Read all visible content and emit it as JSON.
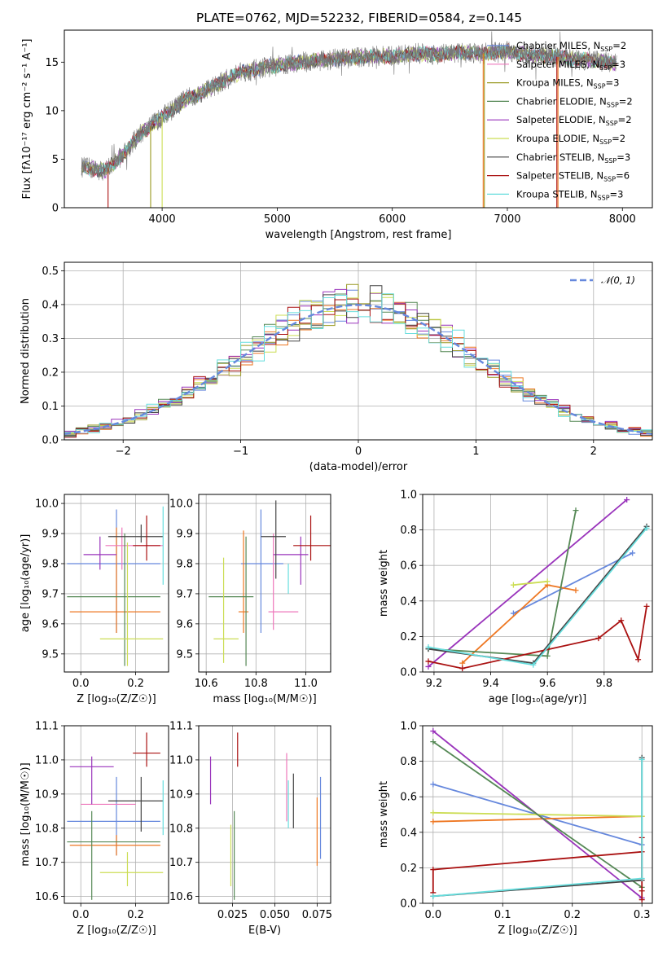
{
  "figure": {
    "title": "PLATE=0762, MJD=52232, FIBERID=0584, z=0.145"
  },
  "colors": {
    "blue": "#6688dd",
    "orange": "#ee7722",
    "olive": "#999922",
    "green": "#558855",
    "purple": "#9933bb",
    "lime": "#ccdd55",
    "dark": "#444444",
    "red": "#aa1111",
    "cyan": "#66dddd",
    "pink": "#ee77bb",
    "gray": "#777777",
    "spectrum": "#777777"
  },
  "chart_data": [
    {
      "id": "spectrum",
      "type": "line",
      "xlabel": "wavelength [Angstrom, rest frame]",
      "ylabel": "Flux [fλ10⁻¹⁷ erg cm⁻² s⁻¹ A⁻¹]",
      "xlim": [
        3150,
        8260
      ],
      "ylim": [
        0,
        18.3
      ],
      "xticks": [
        4000,
        5000,
        6000,
        7000,
        8000
      ],
      "yticks": [
        0,
        5,
        10,
        15
      ],
      "legend_position": "top-right",
      "observed_spectrum": {
        "x": [
          3300,
          3400,
          3500,
          3600,
          3700,
          3800,
          3900,
          4000,
          4100,
          4200,
          4300,
          4400,
          4500,
          4600,
          4700,
          4800,
          4900,
          5000,
          5200,
          5400,
          5600,
          5800,
          6000,
          6200,
          6400,
          6600,
          6800,
          7000,
          7200,
          7400,
          7600,
          7800,
          7950
        ],
        "y": [
          4.2,
          4.0,
          3.8,
          4.8,
          6.0,
          7.5,
          8.4,
          9.4,
          10.2,
          11.2,
          11.6,
          12.3,
          12.8,
          13.5,
          14.0,
          14.2,
          14.5,
          14.6,
          15.0,
          15.2,
          15.4,
          15.6,
          15.6,
          15.9,
          15.8,
          16.0,
          15.9,
          16.1,
          15.7,
          15.6,
          15.3,
          15.1,
          14.8
        ]
      },
      "series": [
        {
          "name": "Chabrier MILES, N$_{SSP}$=2",
          "label_main": "Chabrier MILES, N",
          "label_sub": "SSP",
          "label_tail": "=2",
          "color_key": "blue"
        },
        {
          "name": "Salpeter MILES, N$_{SSP}$=3",
          "label_main": "Salpeter MILES, N",
          "label_sub": "SSP",
          "label_tail": "=3",
          "color_key": "pink"
        },
        {
          "name": "Kroupa MILES, N$_{SSP}$=3",
          "label_main": "Kroupa MILES, N",
          "label_sub": "SSP",
          "label_tail": "=3",
          "color_key": "olive"
        },
        {
          "name": "Chabrier ELODIE, N$_{SSP}$=2",
          "label_main": "Chabrier ELODIE, N",
          "label_sub": "SSP",
          "label_tail": "=2",
          "color_key": "green"
        },
        {
          "name": "Salpeter ELODIE, N$_{SSP}$=2",
          "label_main": "Salpeter ELODIE, N",
          "label_sub": "SSP",
          "label_tail": "=2",
          "color_key": "purple"
        },
        {
          "name": "Kroupa ELODIE, N$_{SSP}$=2",
          "label_main": "Kroupa ELODIE, N",
          "label_sub": "SSP",
          "label_tail": "=2",
          "color_key": "lime"
        },
        {
          "name": "Chabrier STELIB, N$_{SSP}$=3",
          "label_main": "Chabrier STELIB, N",
          "label_sub": "SSP",
          "label_tail": "=3",
          "color_key": "dark"
        },
        {
          "name": "Salpeter STELIB, N$_{SSP}$=6",
          "label_main": "Salpeter STELIB, N",
          "label_sub": "SSP",
          "label_tail": "=6",
          "color_key": "red"
        },
        {
          "name": "Kroupa STELIB, N$_{SSP}$=3",
          "label_main": "Kroupa STELIB, N",
          "label_sub": "SSP",
          "label_tail": "=3",
          "color_key": "cyan"
        }
      ],
      "masked_regions": [
        {
          "x": 3530,
          "color_key": "red"
        },
        {
          "x": 3900,
          "color_key": "olive"
        },
        {
          "x": 4000,
          "color_key": "lime"
        },
        {
          "x": 6790,
          "color_key": "orange"
        },
        {
          "x": 6800,
          "color_key": "olive"
        },
        {
          "x": 7430,
          "color_key": "red"
        },
        {
          "x": 7440,
          "color_key": "orange"
        }
      ]
    },
    {
      "id": "residuals",
      "type": "histogram",
      "xlabel": "(data-model)/error",
      "ylabel": "Normed distribution",
      "xlim": [
        -2.5,
        2.5
      ],
      "ylim": [
        0,
        0.525
      ],
      "xticks": [
        -2,
        -1,
        0,
        1,
        2
      ],
      "yticks": [
        0.0,
        0.1,
        0.2,
        0.3,
        0.4,
        0.5
      ],
      "grid": true,
      "legend_position": "top-right",
      "reference_curve": {
        "name": "$\\mathcal{N}(0,1)$",
        "label": "𝒩(0, 1)",
        "mean": 0,
        "sigma": 1,
        "color_key": "blue",
        "style": "dashed"
      },
      "bin_width": 0.1,
      "histogram_colors": [
        "blue",
        "orange",
        "olive",
        "green",
        "purple",
        "lime",
        "dark",
        "red",
        "cyan"
      ]
    },
    {
      "id": "age_vs_Z",
      "type": "errorbar",
      "xlabel": "Z [log₁₀(Z/Z☉)]",
      "ylabel": "age  [log₁₀(age/yr)]",
      "xlim": [
        -0.06,
        0.32
      ],
      "ylim": [
        9.44,
        10.03
      ],
      "xticks": [
        0.0,
        0.2
      ],
      "yticks": [
        9.5,
        9.6,
        9.7,
        9.8,
        9.9,
        10.0
      ],
      "grid": true,
      "points": [
        {
          "x": 0.13,
          "xerr": [
            0.18,
            0.16
          ],
          "y": 9.8,
          "yerr": [
            0.23,
            0.18
          ],
          "color_key": "blue"
        },
        {
          "x": 0.13,
          "xerr": [
            0.17,
            0.16
          ],
          "y": 9.64,
          "yerr": [
            0.07,
            0.28
          ],
          "color_key": "orange"
        },
        {
          "x": 0.15,
          "xerr": [
            0.06,
            0.15
          ],
          "y": 9.86,
          "yerr": [
            0.08,
            0.06
          ],
          "color_key": "pink"
        },
        {
          "x": 0.16,
          "xerr": [
            0.21,
            0.13
          ],
          "y": 9.69,
          "yerr": [
            0.23,
            0.21
          ],
          "color_key": "green"
        },
        {
          "x": 0.07,
          "xerr": [
            0.06,
            0.06
          ],
          "y": 9.83,
          "yerr": [
            0.05,
            0.06
          ],
          "color_key": "purple"
        },
        {
          "x": 0.17,
          "xerr": [
            0.1,
            0.13
          ],
          "y": 9.55,
          "yerr": [
            0.09,
            0.32
          ],
          "color_key": "lime"
        },
        {
          "x": 0.22,
          "xerr": [
            0.12,
            0.08
          ],
          "y": 9.89,
          "yerr": [
            0.02,
            0.04
          ],
          "color_key": "dark"
        },
        {
          "x": 0.24,
          "xerr": [
            0.05,
            0.05
          ],
          "y": 9.86,
          "yerr": [
            0.05,
            0.1
          ],
          "color_key": "red"
        },
        {
          "x": 0.3,
          "xerr": [
            0.0,
            0.0
          ],
          "y": 9.89,
          "yerr": [
            0.16,
            0.1
          ],
          "color_key": "cyan"
        }
      ]
    },
    {
      "id": "age_vs_mass",
      "type": "errorbar",
      "xlabel": "mass [log₁₀(M/M☉)]",
      "ylabel": "",
      "xlim": [
        10.57,
        11.1
      ],
      "ylim": [
        9.44,
        10.03
      ],
      "xticks": [
        10.6,
        10.8,
        11.0
      ],
      "yticks": [
        9.5,
        9.6,
        9.7,
        9.8,
        9.9,
        10.0
      ],
      "grid": true,
      "points": [
        {
          "x": 10.82,
          "xerr": [
            0.08,
            0.09
          ],
          "y": 9.8,
          "yerr": [
            0.23,
            0.18
          ],
          "color_key": "blue"
        },
        {
          "x": 10.75,
          "xerr": [
            0.02,
            0.02
          ],
          "y": 9.64,
          "yerr": [
            0.07,
            0.27
          ],
          "color_key": "orange"
        },
        {
          "x": 10.87,
          "xerr": [
            0.02,
            0.1
          ],
          "y": 9.64,
          "yerr": [
            0.06,
            0.26
          ],
          "color_key": "pink"
        },
        {
          "x": 10.76,
          "xerr": [
            0.15,
            0.03
          ],
          "y": 9.69,
          "yerr": [
            0.23,
            0.2
          ],
          "color_key": "green"
        },
        {
          "x": 10.98,
          "xerr": [
            0.11,
            0.03
          ],
          "y": 9.83,
          "yerr": [
            0.1,
            0.06
          ],
          "color_key": "purple"
        },
        {
          "x": 10.67,
          "xerr": [
            0.04,
            0.06
          ],
          "y": 9.55,
          "yerr": [
            0.08,
            0.27
          ],
          "color_key": "lime"
        },
        {
          "x": 10.88,
          "xerr": [
            0.06,
            0.04
          ],
          "y": 9.89,
          "yerr": [
            0.14,
            0.12
          ],
          "color_key": "dark"
        },
        {
          "x": 11.02,
          "xerr": [
            0.07,
            0.08
          ],
          "y": 9.86,
          "yerr": [
            0.05,
            0.1
          ],
          "color_key": "red"
        },
        {
          "x": 10.93,
          "xerr": [
            0.0,
            0.0
          ],
          "y": 9.8,
          "yerr": [
            0.1,
            0.0
          ],
          "color_key": "cyan"
        }
      ]
    },
    {
      "id": "weight_vs_age",
      "type": "line",
      "xlabel": "age  [log₁₀(age/yr)]",
      "ylabel": "mass weight",
      "xlim": [
        9.16,
        9.97
      ],
      "ylim": [
        0.0,
        1.0
      ],
      "xticks": [
        9.2,
        9.4,
        9.6,
        9.8
      ],
      "yticks": [
        0.0,
        0.2,
        0.4,
        0.6,
        0.8,
        1.0
      ],
      "grid": true,
      "markers": "plus",
      "series": [
        {
          "color_key": "blue",
          "x": [
            9.48,
            9.9
          ],
          "y": [
            0.33,
            0.67
          ]
        },
        {
          "color_key": "orange",
          "x": [
            9.3,
            9.6,
            9.7
          ],
          "y": [
            0.05,
            0.49,
            0.46
          ]
        },
        {
          "color_key": "purple",
          "x": [
            9.18,
            9.88
          ],
          "y": [
            0.03,
            0.97
          ]
        },
        {
          "color_key": "lime",
          "x": [
            9.48,
            9.6
          ],
          "y": [
            0.49,
            0.51
          ]
        },
        {
          "color_key": "green",
          "x": [
            9.18,
            9.6,
            9.7
          ],
          "y": [
            0.13,
            0.09,
            0.91
          ]
        },
        {
          "color_key": "dark",
          "x": [
            9.18,
            9.55,
            9.95
          ],
          "y": [
            0.13,
            0.05,
            0.82
          ]
        },
        {
          "color_key": "red",
          "x": [
            9.18,
            9.3,
            9.78,
            9.86,
            9.92,
            9.95
          ],
          "y": [
            0.06,
            0.02,
            0.19,
            0.29,
            0.07,
            0.37
          ]
        },
        {
          "color_key": "cyan",
          "x": [
            9.18,
            9.55,
            9.95
          ],
          "y": [
            0.14,
            0.04,
            0.81
          ]
        }
      ]
    },
    {
      "id": "mass_vs_Z",
      "type": "errorbar",
      "xlabel": "Z [log₁₀(Z/Z☉)]",
      "ylabel": "mass [log₁₀(M/M☉)]",
      "xlim": [
        -0.06,
        0.32
      ],
      "ylim": [
        10.58,
        11.1
      ],
      "xticks": [
        0.0,
        0.2
      ],
      "yticks": [
        10.6,
        10.7,
        10.8,
        10.9,
        11.0,
        11.1
      ],
      "grid": true,
      "points": [
        {
          "x": 0.13,
          "xerr": [
            0.18,
            0.16
          ],
          "y": 10.82,
          "yerr": [
            0.1,
            0.13
          ],
          "color_key": "blue"
        },
        {
          "x": 0.13,
          "xerr": [
            0.17,
            0.16
          ],
          "y": 10.75,
          "yerr": [
            0.03,
            0.03
          ],
          "color_key": "orange"
        },
        {
          "x": 0.1,
          "xerr": [
            0.1,
            0.1
          ],
          "y": 10.87,
          "yerr": [
            0.0,
            0.0
          ],
          "color_key": "pink"
        },
        {
          "x": 0.04,
          "xerr": [
            0.09,
            0.25
          ],
          "y": 10.76,
          "yerr": [
            0.17,
            0.09
          ],
          "color_key": "green"
        },
        {
          "x": 0.04,
          "xerr": [
            0.08,
            0.08
          ],
          "y": 10.98,
          "yerr": [
            0.11,
            0.03
          ],
          "color_key": "purple"
        },
        {
          "x": 0.17,
          "xerr": [
            0.1,
            0.13
          ],
          "y": 10.67,
          "yerr": [
            0.04,
            0.06
          ],
          "color_key": "lime"
        },
        {
          "x": 0.22,
          "xerr": [
            0.12,
            0.08
          ],
          "y": 10.88,
          "yerr": [
            0.09,
            0.07
          ],
          "color_key": "dark"
        },
        {
          "x": 0.24,
          "xerr": [
            0.05,
            0.05
          ],
          "y": 11.02,
          "yerr": [
            0.04,
            0.06
          ],
          "color_key": "red"
        },
        {
          "x": 0.3,
          "xerr": [
            0.0,
            0.0
          ],
          "y": 10.85,
          "yerr": [
            0.07,
            0.09
          ],
          "color_key": "cyan"
        }
      ]
    },
    {
      "id": "mass_vs_EBV",
      "type": "errorbar",
      "xlabel": "E(B-V)",
      "ylabel": "",
      "xlim": [
        0.005,
        0.083
      ],
      "ylim": [
        10.58,
        11.1
      ],
      "xticks": [
        0.025,
        0.05,
        0.075
      ],
      "xtick_labels": [
        "0.025",
        "0.050",
        "0.075"
      ],
      "yticks": [
        10.6,
        10.7,
        10.8,
        10.9,
        11.0,
        11.1
      ],
      "grid": true,
      "points": [
        {
          "x": 0.012,
          "y": 10.94,
          "yerr": [
            0.07,
            0.07
          ],
          "color_key": "purple"
        },
        {
          "x": 0.024,
          "y": 10.72,
          "yerr": [
            0.09,
            0.09
          ],
          "color_key": "lime"
        },
        {
          "x": 0.026,
          "y": 10.72,
          "yerr": [
            0.13,
            0.13
          ],
          "color_key": "green"
        },
        {
          "x": 0.028,
          "y": 11.03,
          "yerr": [
            0.05,
            0.05
          ],
          "color_key": "red"
        },
        {
          "x": 0.057,
          "y": 10.92,
          "yerr": [
            0.1,
            0.1
          ],
          "color_key": "pink"
        },
        {
          "x": 0.058,
          "y": 10.87,
          "yerr": [
            0.07,
            0.07
          ],
          "color_key": "cyan"
        },
        {
          "x": 0.061,
          "y": 10.88,
          "yerr": [
            0.08,
            0.08
          ],
          "color_key": "dark"
        },
        {
          "x": 0.075,
          "y": 10.79,
          "yerr": [
            0.1,
            0.1
          ],
          "color_key": "orange"
        },
        {
          "x": 0.077,
          "y": 10.83,
          "yerr": [
            0.12,
            0.12
          ],
          "color_key": "blue"
        }
      ]
    },
    {
      "id": "weight_vs_Z",
      "type": "line",
      "xlabel": "Z [log₁₀(Z/Z☉)]",
      "ylabel": "mass weight",
      "xlim": [
        -0.015,
        0.315
      ],
      "ylim": [
        0.0,
        1.0
      ],
      "xticks": [
        0.0,
        0.1,
        0.2,
        0.3
      ],
      "yticks": [
        0.0,
        0.2,
        0.4,
        0.6,
        0.8,
        1.0
      ],
      "grid": true,
      "markers": "plus",
      "series": [
        {
          "color_key": "blue",
          "x": [
            0.0,
            0.3
          ],
          "y": [
            0.67,
            0.33
          ]
        },
        {
          "color_key": "orange",
          "x": [
            0.0,
            0.3
          ],
          "y": [
            0.46,
            0.49
          ]
        },
        {
          "color_key": "purple",
          "x": [
            0.0,
            0.3
          ],
          "y": [
            0.97,
            0.03
          ]
        },
        {
          "color_key": "lime",
          "x": [
            0.0,
            0.3
          ],
          "y": [
            0.51,
            0.49
          ]
        },
        {
          "color_key": "green",
          "x": [
            0.0,
            0.3
          ],
          "y": [
            0.91,
            0.09
          ]
        },
        {
          "color_key": "dark",
          "x": [
            0.0,
            0.3,
            0.3
          ],
          "y": [
            0.04,
            0.13,
            0.82
          ]
        },
        {
          "color_key": "red",
          "x": [
            0.0,
            0.0,
            0.3,
            0.3,
            0.3,
            0.3
          ],
          "y": [
            0.06,
            0.19,
            0.29,
            0.37,
            0.07,
            0.02
          ]
        },
        {
          "color_key": "cyan",
          "x": [
            0.0,
            0.3,
            0.3
          ],
          "y": [
            0.04,
            0.14,
            0.81
          ]
        }
      ]
    }
  ]
}
